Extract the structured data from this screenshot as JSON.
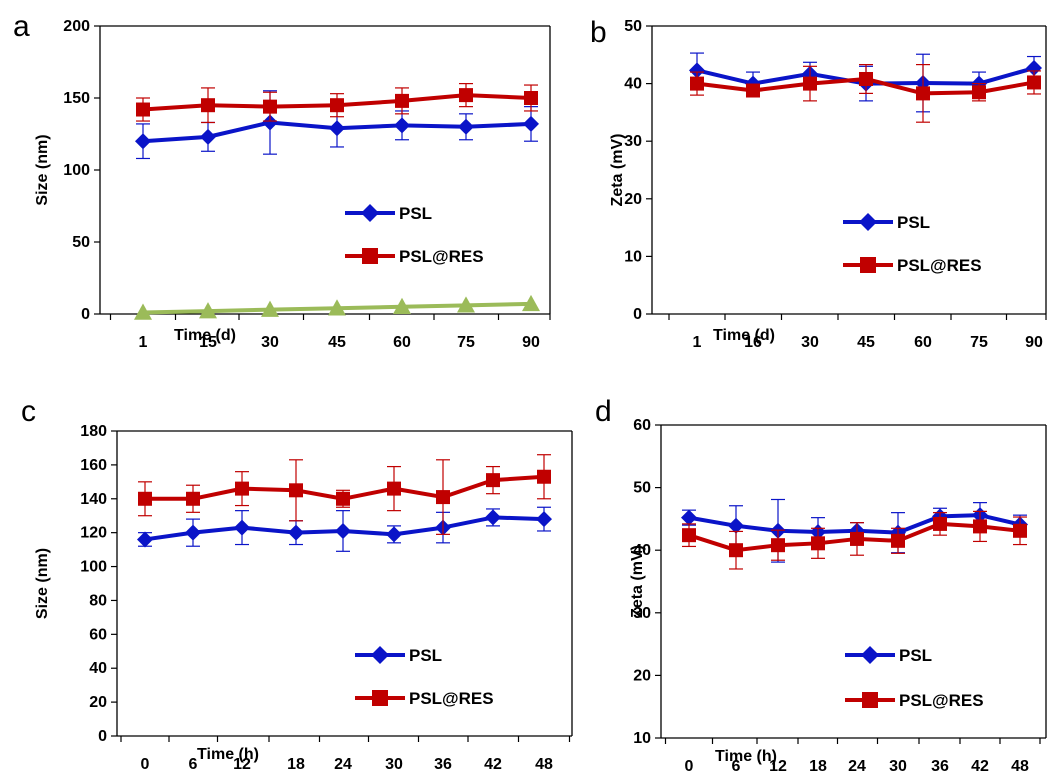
{
  "chart_data": [
    {
      "panel": "a",
      "type": "line",
      "xlabel": "Time (d)",
      "ylabel": "Size (nm)",
      "ylim": [
        0,
        200
      ],
      "yticks": [
        0,
        50,
        100,
        150,
        200
      ],
      "categories": [
        "1",
        "15",
        "30",
        "45",
        "60",
        "75",
        "90"
      ],
      "series": [
        {
          "name": "PSL",
          "color": "#0a14c8",
          "marker": "diamond",
          "values": [
            120,
            123,
            133,
            129,
            131,
            130,
            132
          ],
          "errors": [
            12,
            10,
            22,
            13,
            10,
            9,
            12
          ]
        },
        {
          "name": "PSL@RES",
          "color": "#c00000",
          "marker": "square",
          "values": [
            142,
            145,
            144,
            145,
            148,
            152,
            150
          ],
          "errors": [
            8,
            12,
            10,
            8,
            9,
            8,
            9
          ]
        },
        {
          "name": "",
          "color": "#9bbb59",
          "marker": "triangle",
          "values": [
            1,
            2,
            3,
            4,
            5,
            6,
            7
          ],
          "errors": []
        }
      ],
      "legend": "center-right"
    },
    {
      "panel": "b",
      "type": "line",
      "xlabel": "Time (d)",
      "ylabel": "Zeta (mV)",
      "ylim": [
        0,
        50
      ],
      "yticks": [
        0,
        10,
        20,
        30,
        40,
        50
      ],
      "categories": [
        "1",
        "16",
        "30",
        "45",
        "60",
        "75",
        "90"
      ],
      "series": [
        {
          "name": "PSL",
          "color": "#0a14c8",
          "marker": "diamond",
          "values": [
            42.3,
            40.0,
            41.7,
            40.0,
            40.1,
            40.0,
            42.7
          ],
          "errors": [
            3.0,
            2.0,
            2.0,
            3.0,
            5.0,
            2.0,
            2.0
          ]
        },
        {
          "name": "PSL@RES",
          "color": "#c00000",
          "marker": "square",
          "values": [
            40.0,
            38.8,
            40.0,
            40.8,
            38.3,
            38.5,
            40.2
          ],
          "errors": [
            2.0,
            1.0,
            3.0,
            2.5,
            5.0,
            1.5,
            2.0
          ]
        }
      ],
      "legend": "center-right"
    },
    {
      "panel": "c",
      "type": "line",
      "xlabel": "Time (h)",
      "ylabel": "Size (nm)",
      "ylim": [
        0,
        180
      ],
      "yticks": [
        0,
        20,
        40,
        60,
        80,
        100,
        120,
        140,
        160,
        180
      ],
      "categories": [
        "0",
        "6",
        "12",
        "18",
        "24",
        "30",
        "36",
        "42",
        "48"
      ],
      "series": [
        {
          "name": "PSL",
          "color": "#0a14c8",
          "marker": "diamond",
          "values": [
            116,
            120,
            123,
            120,
            121,
            119,
            123,
            129,
            128
          ],
          "errors": [
            4,
            8,
            10,
            7,
            12,
            5,
            9,
            5,
            7
          ]
        },
        {
          "name": "PSL@RES",
          "color": "#c00000",
          "marker": "square",
          "values": [
            140,
            140,
            146,
            145,
            140,
            146,
            141,
            151,
            153
          ],
          "errors": [
            10,
            8,
            10,
            18,
            5,
            13,
            22,
            8,
            13
          ]
        }
      ],
      "legend": "center-right"
    },
    {
      "panel": "d",
      "type": "line",
      "xlabel": "Time (h)",
      "ylabel": "Zeta (mV)",
      "ylim": [
        10,
        60
      ],
      "yticks": [
        10,
        20,
        30,
        40,
        50,
        60
      ],
      "categories": [
        "0",
        "6",
        "12",
        "18",
        "24",
        "30",
        "36",
        "42",
        "48"
      ],
      "series": [
        {
          "name": "PSL",
          "color": "#0a14c8",
          "marker": "diamond",
          "values": [
            45.2,
            43.9,
            43.1,
            42.9,
            43.1,
            42.8,
            45.4,
            45.6,
            44.1
          ],
          "errors": [
            1.2,
            3.2,
            5.0,
            2.3,
            1.3,
            3.2,
            1.3,
            2.0,
            1.5
          ]
        },
        {
          "name": "PSL@RES",
          "color": "#c00000",
          "marker": "square",
          "values": [
            42.4,
            40.0,
            40.8,
            41.1,
            41.8,
            41.5,
            44.2,
            43.8,
            43.1
          ],
          "errors": [
            1.8,
            3.0,
            2.4,
            2.4,
            2.6,
            2.0,
            1.8,
            2.4,
            2.2
          ]
        }
      ],
      "legend": "center-right"
    }
  ]
}
